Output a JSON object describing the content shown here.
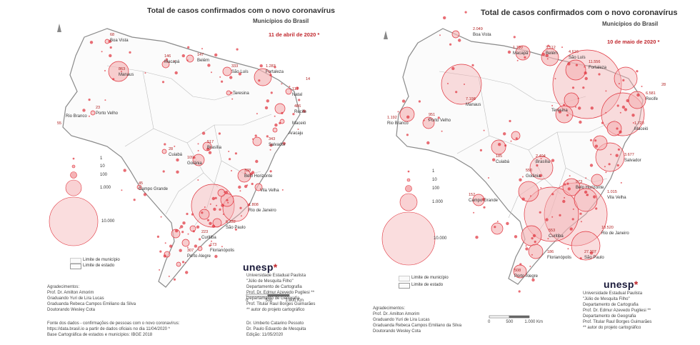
{
  "left": {
    "title": "Total de casos confirmados com o novo coronavírus",
    "subtitle": "Municípios do Brasil",
    "date": "11 de abril de 2020 *",
    "legend": {
      "items": [
        "1",
        "10",
        "100",
        "1.000",
        "10.000"
      ],
      "limit_municipio": "Limite de município",
      "limit_estado": "Limite de estado"
    },
    "scale": {
      "ticks": [
        "0",
        "500",
        "1.000 Km"
      ]
    },
    "logo": "unesp",
    "institution": [
      "Universidade Estadual Paulista",
      "\"Júlio de Mesquita Filho\"",
      "Departamento de Cartografia",
      "Prof. Dr. Edmur Azevedo Pugliesi **",
      "Departamento de Geografia",
      "Prof. Titular Raul Borges Guimarães",
      "** autor do projeto cartográfico"
    ],
    "credits": [
      "Dr. Umberto Catarino Pessoto",
      "Dr. Paulo Eduardo de Mesquita",
      "Edição: 11/05/2020"
    ],
    "thanks": [
      "Agradecimentos:",
      "Prof. Dr. Amilton Amorim",
      "Graduando Yuri de Lira Lucas",
      "Graduanda Rebeca Campos Emiliano da Silva",
      "Doutorando Wesley Cota"
    ],
    "source": [
      "Fonte dos dados - confirmações de pessoas com o novo coronavírus:",
      "https://data.brasil.io a partir de dados oficiais no dia 11/04/2020 *",
      "Base Cartográfica de estados e municípios: IBGE 2018"
    ],
    "cities": [
      {
        "name": "Boa Vista",
        "value": "68"
      },
      {
        "name": "Macapá",
        "value": "146"
      },
      {
        "name": "Belém",
        "value": "147"
      },
      {
        "name": "São Luís",
        "value": "333"
      },
      {
        "name": "Fortaleza",
        "value": "1.283"
      },
      {
        "name": "Manaus",
        "value": "863"
      },
      {
        "name": "Teresina",
        "value": ""
      },
      {
        "name": "Natal",
        "value": "117"
      },
      {
        "name": "Recife",
        "value": "486"
      },
      {
        "name": "Maceió",
        "value": ""
      },
      {
        "name": "Aracaju",
        "value": ""
      },
      {
        "name": "Salvador",
        "value": "343"
      },
      {
        "name": "Rio Branco",
        "value": ""
      },
      {
        "name": "Porto Velho",
        "value": "23"
      },
      {
        "name": "Cuiabá",
        "value": "28"
      },
      {
        "name": "Brasília",
        "value": "517"
      },
      {
        "name": "Goiânia",
        "value": "109"
      },
      {
        "name": "Belo Horizonte",
        "value": "338"
      },
      {
        "name": "Campo Grande",
        "value": "45"
      },
      {
        "name": "Vila Velha",
        "value": ""
      },
      {
        "name": "Rio de Janeiro",
        "value": "1.808"
      },
      {
        "name": "São Paulo",
        "value": "6.332"
      },
      {
        "name": "Curitiba",
        "value": "223"
      },
      {
        "name": "Florianópolis",
        "value": "173"
      },
      {
        "name": "Porto Alegre",
        "value": "307"
      }
    ],
    "extra_values": [
      "55",
      "14"
    ]
  },
  "right": {
    "title": "Total de casos confirmados com o novo coronavírus",
    "subtitle": "Municípios do Brasil",
    "date": "10 de maio de 2020 *",
    "legend": {
      "items": [
        "1",
        "10",
        "100",
        "1.000",
        "10.000"
      ],
      "limit_municipio": "Limite de município",
      "limit_estado": "Limite de estado"
    },
    "scale": {
      "ticks": [
        "0",
        "500",
        "1.000 Km"
      ]
    },
    "logo": "unesp",
    "institution": [
      "Universidade Estadual Paulista",
      "\"Júlio de Mesquita Filho\"",
      "Departamento de Cartografia",
      "Prof. Dr. Edmur Azevedo Pugliesi **",
      "Departamento de Geografia",
      "Prof. Titular Raul Borges Guimarães",
      "** autor do projeto cartográfico"
    ],
    "thanks": [
      "Agradecimentos:",
      "Prof. Dr. Amilton Amorim",
      "Graduando Yuri de Lira Lucas",
      "Graduanda Rebeca Campos Emiliano da Silva",
      "Doutorando Wesley Cota"
    ],
    "cities": [
      {
        "name": "Boa Vista",
        "value": "2.049"
      },
      {
        "name": "Macapá",
        "value": "1.790"
      },
      {
        "name": "Belém",
        "value": "3.512"
      },
      {
        "name": "São Luís",
        "value": "4.616"
      },
      {
        "name": "Fortaleza",
        "value": "11.556"
      },
      {
        "name": "Manaus",
        "value": "7.198"
      },
      {
        "name": "Teresina",
        "value": ""
      },
      {
        "name": "Recife",
        "value": "6.581"
      },
      {
        "name": "Maceió",
        "value": "1.723"
      },
      {
        "name": "Salvador",
        "value": "3.677"
      },
      {
        "name": "Rio Branco",
        "value": "1.192"
      },
      {
        "name": "Porto Velho",
        "value": "951"
      },
      {
        "name": "Cuiabá",
        "value": "185"
      },
      {
        "name": "Brasília",
        "value": "2.404"
      },
      {
        "name": "Goiânia",
        "value": "550"
      },
      {
        "name": "Belo Horizonte",
        "value": "973"
      },
      {
        "name": "Campo Grande",
        "value": "152"
      },
      {
        "name": "Vila Velha",
        "value": "1.015"
      },
      {
        "name": "Rio de Janeiro",
        "value": "10.520"
      },
      {
        "name": "São Paulo",
        "value": "27.307"
      },
      {
        "name": "Curitiba",
        "value": "553"
      },
      {
        "name": "Florianópolis",
        "value": "186"
      },
      {
        "name": "Porto Alegre",
        "value": "508"
      }
    ],
    "extra_values": [
      "28"
    ]
  },
  "colors": {
    "bubble": "#e0313b",
    "bubble_fill": "#f5b3b6",
    "state": "#8a8a8a",
    "municipio": "#d6d6d6"
  }
}
